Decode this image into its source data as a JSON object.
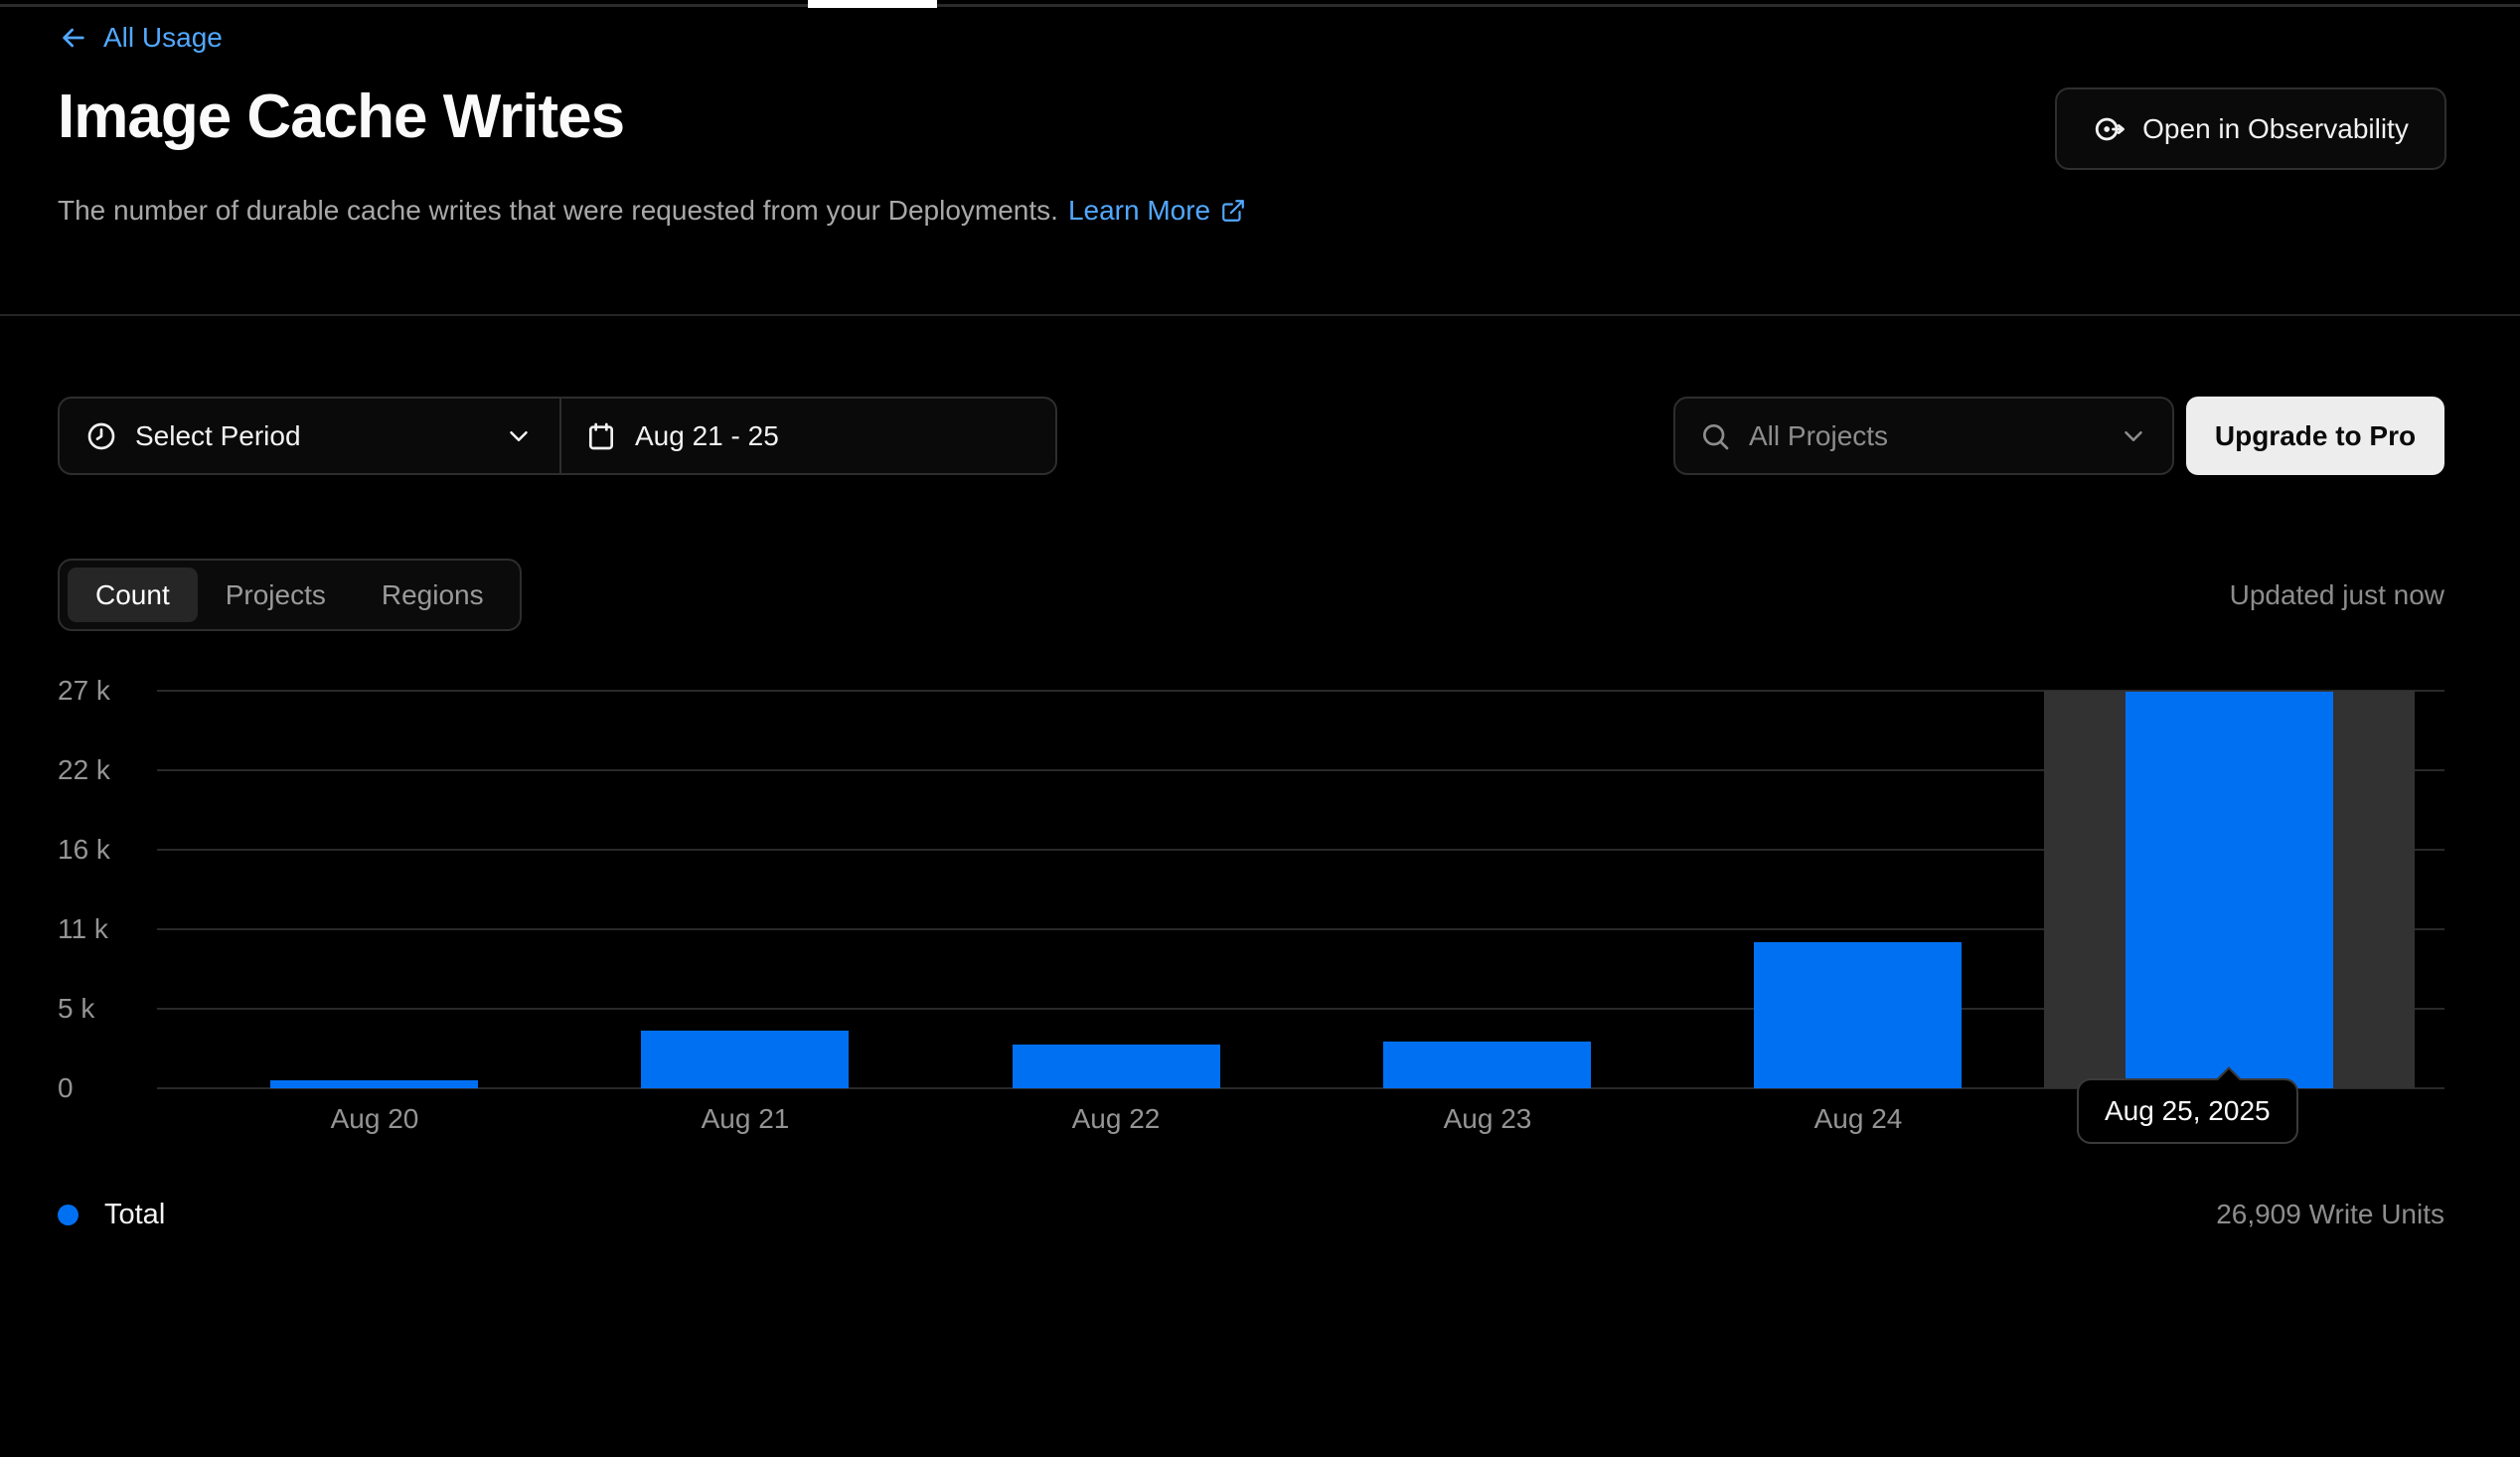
{
  "top": {
    "back_label": "All Usage"
  },
  "header": {
    "title": "Image Cache Writes",
    "description": "The number of durable cache writes that were requested from your Deployments.",
    "learn_more_label": "Learn More",
    "observability_button_label": "Open in Observability"
  },
  "filters": {
    "period_label": "Select Period",
    "date_range": "Aug 21 - 25",
    "projects_placeholder": "All Projects",
    "upgrade_label": "Upgrade to Pro"
  },
  "tabs": [
    {
      "label": "Count",
      "active": true
    },
    {
      "label": "Projects",
      "active": false
    },
    {
      "label": "Regions",
      "active": false
    }
  ],
  "status": {
    "updated": "Updated just now"
  },
  "chart_data": {
    "type": "bar",
    "categories": [
      "Aug 20",
      "Aug 21",
      "Aug 22",
      "Aug 23",
      "Aug 24",
      "Aug 25"
    ],
    "values": [
      540,
      3900,
      2970,
      3170,
      9950,
      26909
    ],
    "series_name": "Total",
    "unit": "Write Units",
    "ylim": [
      0,
      27000
    ],
    "yticks": [
      {
        "value": 0,
        "label": "0"
      },
      {
        "value": 5400,
        "label": "5 k"
      },
      {
        "value": 10800,
        "label": "11 k"
      },
      {
        "value": 16200,
        "label": "16 k"
      },
      {
        "value": 21600,
        "label": "22 k"
      },
      {
        "value": 27000,
        "label": "27 k"
      }
    ],
    "grid": "horizontal",
    "legend_position": "bottom-left",
    "bar_color": "#0070f3",
    "highlight_band_color": "#323232",
    "highlighted_index": 5,
    "hover_tooltip": "Aug 25, 2025",
    "hover_value_display": "26,909 Write Units"
  },
  "tooltip": {
    "label": "Aug 25, 2025"
  },
  "legend": {
    "series": "Total",
    "value": "26,909 Write Units"
  },
  "colors": {
    "accent_blue": "#0070f3",
    "link_blue": "#52a8ff",
    "background": "#000000",
    "border": "#2e2e2e",
    "muted_text": "#8d8d8d"
  }
}
